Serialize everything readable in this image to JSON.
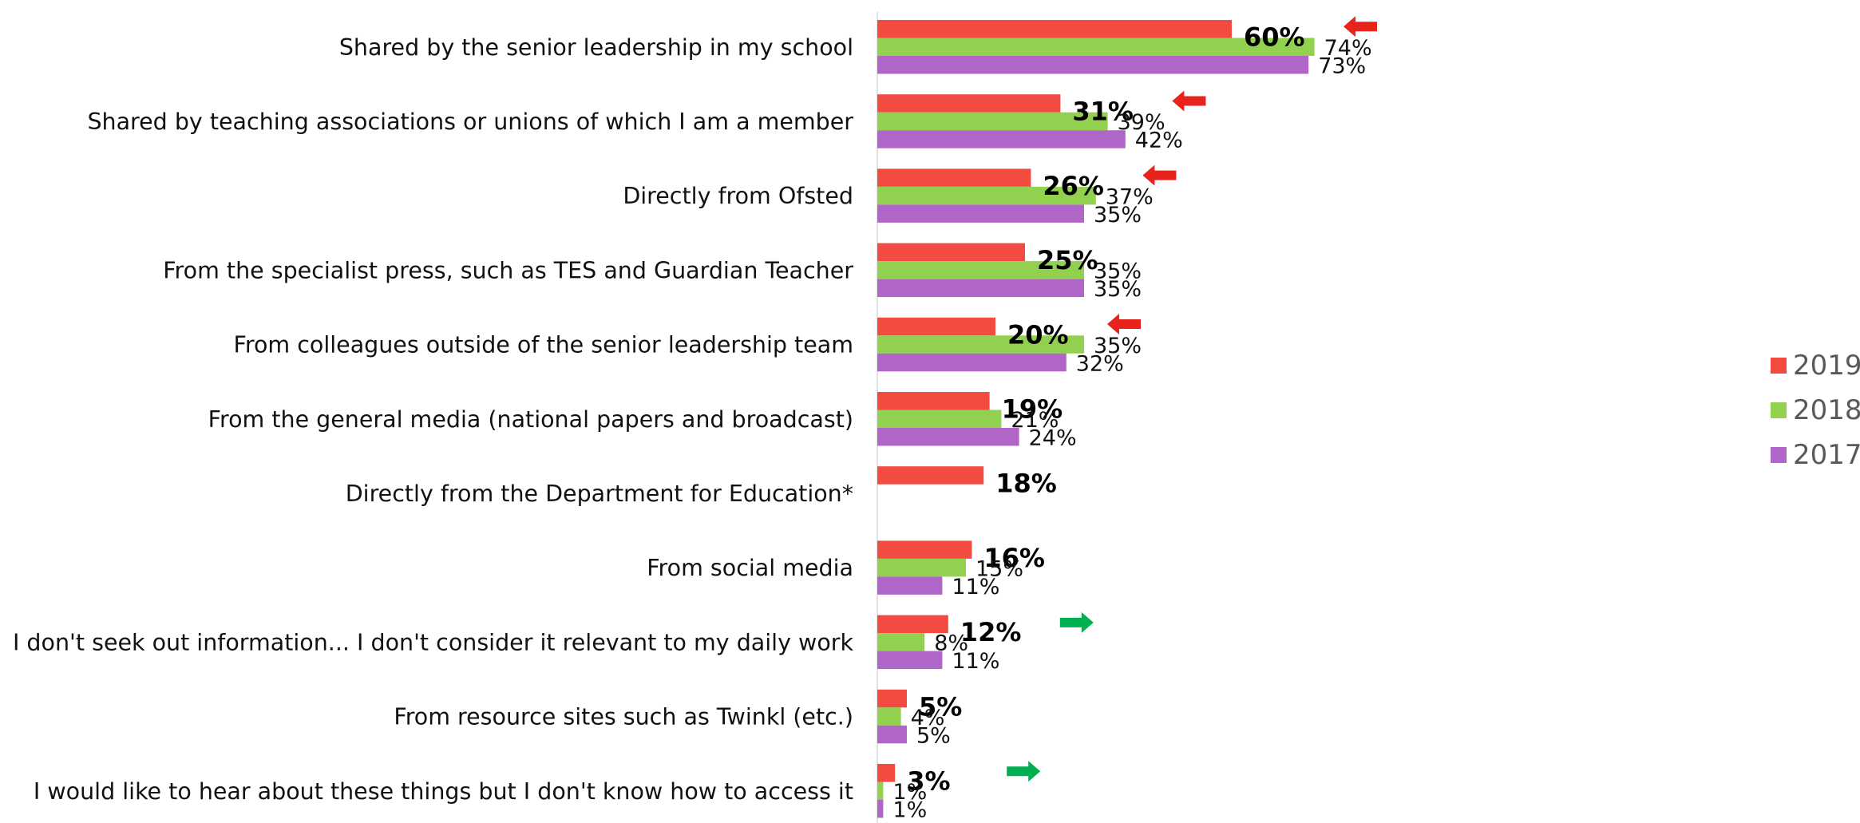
{
  "chart_data": {
    "type": "bar",
    "orientation": "horizontal",
    "categories": [
      "Shared by the senior leadership in my school",
      "Shared by teaching associations or unions of which I am a member",
      "Directly from Ofsted",
      "From the specialist press, such as TES and Guardian Teacher",
      "From colleagues outside of the senior leadership team",
      "From the general media (national papers and broadcast)",
      "Directly from the Department for Education*",
      "From social media",
      "I don't seek out information... I don't consider it relevant to my daily work",
      "From resource sites such as Twinkl (etc.)",
      "I would like to hear about these things but I don't know how to access it"
    ],
    "series": [
      {
        "name": "2019",
        "color": "#f24b41",
        "values": [
          60,
          31,
          26,
          25,
          20,
          19,
          18,
          16,
          12,
          5,
          3
        ]
      },
      {
        "name": "2018",
        "color": "#92d050",
        "values": [
          74,
          39,
          37,
          35,
          35,
          21,
          null,
          15,
          8,
          4,
          1
        ]
      },
      {
        "name": "2017",
        "color": "#b065c8",
        "values": [
          73,
          42,
          35,
          35,
          32,
          24,
          null,
          11,
          11,
          5,
          1
        ]
      }
    ],
    "value_suffix": "%",
    "trend_arrows": [
      "down",
      "down",
      "down",
      null,
      "down",
      null,
      null,
      null,
      "up",
      null,
      "up"
    ],
    "arrow_colors": {
      "down": "#e8231b",
      "up": "#00b050"
    },
    "legend": {
      "position": "right",
      "entries": [
        "2019",
        "2018",
        "2017"
      ]
    },
    "xlim": [
      0,
      100
    ],
    "grid": false
  }
}
